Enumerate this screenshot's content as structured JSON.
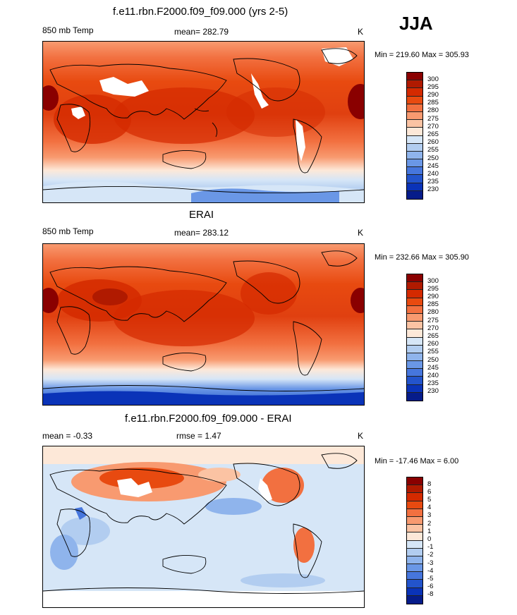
{
  "header": {
    "season": "JJA"
  },
  "panels": [
    {
      "title": "f.e11.rbn.F2000.f09_f09.000 (yrs 2-5)",
      "left_label": "850 mb Temp",
      "center_label": "mean= 282.79",
      "units": "K",
      "minmax": "Min = 219.60 Max = 305.93",
      "colorbar": {
        "labels": [
          "300",
          "295",
          "290",
          "285",
          "280",
          "275",
          "270",
          "265",
          "260",
          "255",
          "250",
          "245",
          "240",
          "235",
          "230"
        ],
        "colors": [
          "#8a0000",
          "#b01a00",
          "#d42a00",
          "#e84a10",
          "#f27040",
          "#f89a70",
          "#fbc3a3",
          "#fde8d8",
          "#d6e6f7",
          "#b2cdf0",
          "#8fb4ec",
          "#6a97e6",
          "#4676dd",
          "#2354cc",
          "#0a33b8",
          "#061c8a"
        ]
      }
    },
    {
      "title": "ERAI",
      "left_label": "850 mb Temp",
      "center_label": "mean= 283.12",
      "units": "K",
      "minmax": "Min = 232.66 Max = 305.90",
      "colorbar": {
        "labels": [
          "300",
          "295",
          "290",
          "285",
          "280",
          "275",
          "270",
          "265",
          "260",
          "255",
          "250",
          "245",
          "240",
          "235",
          "230"
        ],
        "colors": [
          "#8a0000",
          "#b01a00",
          "#d42a00",
          "#e84a10",
          "#f27040",
          "#f89a70",
          "#fbc3a3",
          "#fde8d8",
          "#d6e6f7",
          "#b2cdf0",
          "#8fb4ec",
          "#6a97e6",
          "#4676dd",
          "#2354cc",
          "#0a33b8",
          "#061c8a"
        ]
      }
    },
    {
      "title": "f.e11.rbn.F2000.f09_f09.000 - ERAI",
      "left_label": "mean =  -0.33",
      "center_label": "rmse =   1.47",
      "units": "K",
      "minmax": "Min = -17.46 Max =   6.00",
      "colorbar": {
        "labels": [
          "8",
          "6",
          "5",
          "4",
          "3",
          "2",
          "1",
          "0",
          "-1",
          "-2",
          "-3",
          "-4",
          "-5",
          "-6",
          "-8"
        ],
        "colors": [
          "#8a0000",
          "#b01a00",
          "#d42a00",
          "#e84a10",
          "#f27040",
          "#f89a70",
          "#fbc3a3",
          "#fde8d8",
          "#d6e6f7",
          "#b2cdf0",
          "#8fb4ec",
          "#6a97e6",
          "#4676dd",
          "#2354cc",
          "#0a33b8",
          "#061c8a"
        ]
      }
    }
  ]
}
